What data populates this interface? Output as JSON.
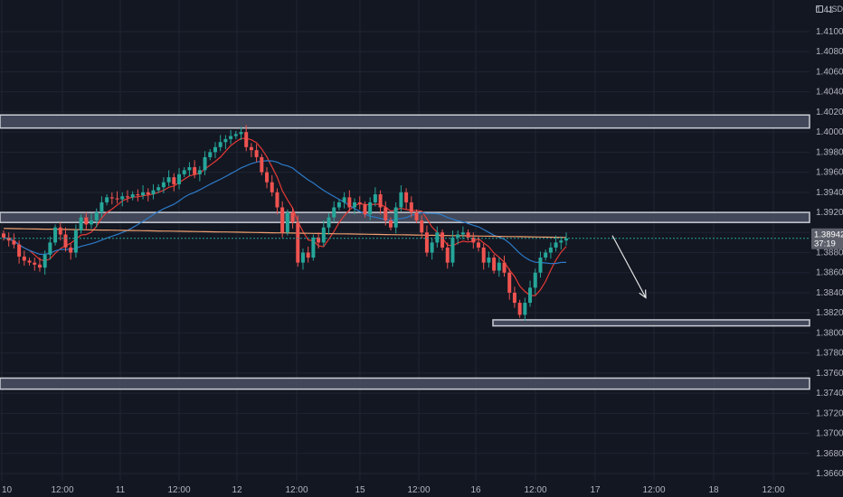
{
  "colors": {
    "background": "#131722",
    "grid": "#1f2433",
    "up": "#26a69a",
    "down": "#ef5350",
    "zone_fill": "#4b5163",
    "zone_stroke": "#c9cdd6",
    "ma_fast": "#e53935",
    "ma_slow": "#2c7ac8",
    "ma_long": "#f0a070",
    "price_line": "#26a69a",
    "arrow": "#e6e6e6",
    "price_label_bg": "#5d606b"
  },
  "axis": {
    "currency": "USD",
    "current_price": "1.38942",
    "countdown": "37:19"
  },
  "chart_data": {
    "type": "candlestick",
    "x_ticks": [
      "10",
      "12:00",
      "11",
      "12:00",
      "12",
      "12:00",
      "15",
      "12:00",
      "16",
      "12:00",
      "17",
      "12:00",
      "18",
      "12:00"
    ],
    "y_ticks": [
      "1.41",
      "1.41000",
      "1.40800",
      "1.40600",
      "1.40400",
      "1.40200",
      "1.40000",
      "1.39800",
      "1.39600",
      "1.39400",
      "1.39200",
      "1.39000",
      "1.38800",
      "1.38600",
      "1.38400",
      "1.38200",
      "1.38000",
      "1.37800",
      "1.37600",
      "1.37400",
      "1.37200",
      "1.37000",
      "1.36800",
      "1.36600"
    ],
    "ylim": [
      1.365,
      1.412
    ],
    "last_close": 1.38942,
    "zones": [
      {
        "from": 1.4004,
        "to": 1.4017
      },
      {
        "from": 1.391,
        "to": 1.392
      },
      {
        "from": 1.3807,
        "to": 1.3813
      },
      {
        "from": 1.3744,
        "to": 1.3755
      }
    ],
    "projection": {
      "from_time": "16 18:00",
      "from_price": 1.3897,
      "to_time": "17 03:00",
      "to_price": 1.3835
    },
    "closes": [
      1.3895,
      1.3892,
      1.3888,
      1.3876,
      1.3872,
      1.387,
      1.3868,
      1.3865,
      1.3878,
      1.389,
      1.3905,
      1.3898,
      1.3885,
      1.388,
      1.3902,
      1.3915,
      1.3908,
      1.3912,
      1.392,
      1.393,
      1.3935,
      1.3934,
      1.3933,
      1.3936,
      1.3935,
      1.3938,
      1.3937,
      1.394,
      1.3938,
      1.3942,
      1.3945,
      1.395,
      1.3955,
      1.3948,
      1.3958,
      1.3962,
      1.3965,
      1.3958,
      1.3962,
      1.3975,
      1.398,
      1.3985,
      1.399,
      1.3993,
      1.3996,
      1.3998,
      1.4,
      1.3985,
      1.3982,
      1.3975,
      1.396,
      1.395,
      1.394,
      1.3925,
      1.39,
      1.392,
      1.391,
      1.387,
      1.388,
      1.3875,
      1.3895,
      1.389,
      1.3905,
      1.3915,
      1.3925,
      1.393,
      1.3935,
      1.3925,
      1.393,
      1.3928,
      1.3918,
      1.393,
      1.3938,
      1.3925,
      1.3912,
      1.3905,
      1.3925,
      1.394,
      1.393,
      1.392,
      1.3912,
      1.39,
      1.388,
      1.389,
      1.39,
      1.3885,
      1.387,
      1.3895,
      1.3898,
      1.39,
      1.3895,
      1.389,
      1.3885,
      1.387,
      1.3875,
      1.3862,
      1.387,
      1.386,
      1.384,
      1.383,
      1.3818,
      1.383,
      1.3845,
      1.386,
      1.3875,
      1.388,
      1.3885,
      1.389,
      1.3892,
      1.3894
    ]
  }
}
